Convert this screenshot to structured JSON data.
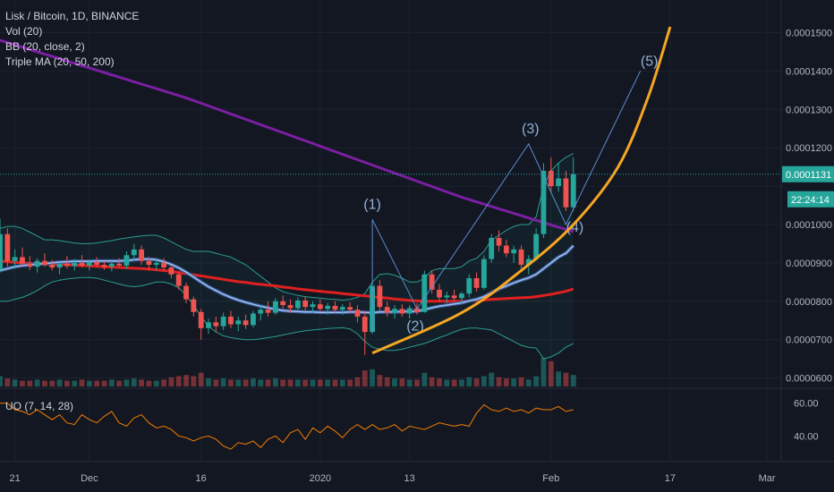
{
  "legend": {
    "symbol": "Lisk / Bitcoin, 1D, BINANCE",
    "vol": "Vol (20)",
    "bb": "BB (20, close, 2)",
    "ma": "Triple MA (20, 50, 200)",
    "uo": "UO (7, 14, 28)"
  },
  "price_badge": {
    "price": "0.0001131",
    "countdown": "22:24:14"
  },
  "wave_labels": [
    "(1)",
    "(2)",
    "(3)",
    "(4)",
    "(5)"
  ],
  "colors": {
    "background": "#131722",
    "up": "#26a69a",
    "down": "#ef5350",
    "ma200": "#7b1fa2",
    "ma50": "#e02020",
    "ma20": "#5b8ccf",
    "bb": "#2a9d8f",
    "uo": "#f57c00",
    "projection": "#f5a623",
    "wave": "#5b8ccf"
  },
  "chart_data": {
    "type": "candlestick",
    "price_axis": {
      "ticks": [
        6e-05,
        7e-05,
        8e-05,
        9e-05,
        0.0001,
        0.00011,
        0.00012,
        0.00013,
        0.00014,
        0.00015
      ],
      "labels": [
        "0.0000600",
        "0.0000700",
        "0.0000800",
        "0.0000900",
        "0.0001000",
        "0.0001100",
        "0.0001200",
        "0.0001300",
        "0.0001400",
        "0.0001500"
      ],
      "range": [
        5.78e-05,
        0.0001585
      ]
    },
    "uo_axis": {
      "ticks": [
        40,
        60
      ],
      "labels": [
        "40.00",
        "60.00"
      ],
      "range": [
        25,
        68
      ]
    },
    "time_axis": {
      "start": "2019-11-19",
      "end": "2020-03-10",
      "labels": [
        {
          "date": "2019-11-21",
          "text": "21"
        },
        {
          "date": "2019-12-01",
          "text": "Dec"
        },
        {
          "date": "2019-12-16",
          "text": "16"
        },
        {
          "date": "2020-01-01",
          "text": "2020"
        },
        {
          "date": "2020-01-13",
          "text": "13"
        },
        {
          "date": "2020-02-01",
          "text": "Feb"
        },
        {
          "date": "2020-02-17",
          "text": "17"
        },
        {
          "date": "2020-03-01",
          "text": "Mar"
        }
      ]
    },
    "candles_start": "2019-11-19",
    "candles": [
      [
        8.82e-05,
        0.0001015,
        8.75e-05,
        9.75e-05
      ],
      [
        9.75e-05,
        9.9e-05,
        8.9e-05,
        9.05e-05
      ],
      [
        9.05e-05,
        9.35e-05,
        8.85e-05,
        9.15e-05
      ],
      [
        9.15e-05,
        9.4e-05,
        8.9e-05,
        8.98e-05
      ],
      [
        8.98e-05,
        9.18e-05,
        8.82e-05,
        8.9e-05
      ],
      [
        8.9e-05,
        9.12e-05,
        8.75e-05,
        9.05e-05
      ],
      [
        9.05e-05,
        9.25e-05,
        8.9e-05,
        8.95e-05
      ],
      [
        8.95e-05,
        9.08e-05,
        8.8e-05,
        8.88e-05
      ],
      [
        8.88e-05,
        9.04e-05,
        8.7e-05,
        8.98e-05
      ],
      [
        8.98e-05,
        9.18e-05,
        8.85e-05,
        8.92e-05
      ],
      [
        8.92e-05,
        9.1e-05,
        8.8e-05,
        9e-05
      ],
      [
        9e-05,
        9.2e-05,
        8.88e-05,
        8.93e-05
      ],
      [
        8.93e-05,
        9.08e-05,
        8.8e-05,
        9.02e-05
      ],
      [
        9.02e-05,
        9.15e-05,
        8.9e-05,
        8.95e-05
      ],
      [
        8.95e-05,
        9.05e-05,
        8.82e-05,
        8.9e-05
      ],
      [
        8.9e-05,
        9.05e-05,
        8.78e-05,
        8.98e-05
      ],
      [
        8.98e-05,
        9.12e-05,
        8.88e-05,
        8.93e-05
      ],
      [
        8.93e-05,
        9.3e-05,
        8.85e-05,
        9.2e-05
      ],
      [
        9.2e-05,
        9.5e-05,
        9.05e-05,
        9.35e-05
      ],
      [
        9.35e-05,
        9.45e-05,
        8.95e-05,
        9.05e-05
      ],
      [
        9.05e-05,
        9.15e-05,
        8.8e-05,
        8.95e-05
      ],
      [
        8.95e-05,
        9.08e-05,
        8.8e-05,
        9e-05
      ],
      [
        9e-05,
        9.12e-05,
        8.8e-05,
        8.88e-05
      ],
      [
        8.88e-05,
        8.95e-05,
        8.6e-05,
        8.7e-05
      ],
      [
        8.7e-05,
        8.75e-05,
        8.3e-05,
        8.4e-05
      ],
      [
        8.4e-05,
        8.48e-05,
        7.95e-05,
        8.05e-05
      ],
      [
        8.05e-05,
        8.12e-05,
        7.6e-05,
        7.72e-05
      ],
      [
        7.72e-05,
        7.8e-05,
        7e-05,
        7.3e-05
      ],
      [
        7.3e-05,
        7.55e-05,
        7.15e-05,
        7.45e-05
      ],
      [
        7.45e-05,
        7.6e-05,
        7.2e-05,
        7.35e-05
      ],
      [
        7.35e-05,
        7.7e-05,
        7.25e-05,
        7.6e-05
      ],
      [
        7.6e-05,
        7.75e-05,
        7.3e-05,
        7.4e-05
      ],
      [
        7.4e-05,
        7.6e-05,
        7.22e-05,
        7.5e-05
      ],
      [
        7.5e-05,
        7.65e-05,
        7.28e-05,
        7.38e-05
      ],
      [
        7.38e-05,
        7.75e-05,
        7.32e-05,
        7.68e-05
      ],
      [
        7.68e-05,
        7.9e-05,
        7.5e-05,
        7.78e-05
      ],
      [
        7.78e-05,
        8e-05,
        7.6e-05,
        7.7e-05
      ],
      [
        7.7e-05,
        8.08e-05,
        7.65e-05,
        8e-05
      ],
      [
        8e-05,
        8.15e-05,
        7.8e-05,
        7.9e-05
      ],
      [
        7.9e-05,
        8.05e-05,
        7.7e-05,
        7.82e-05
      ],
      [
        7.82e-05,
        8.1e-05,
        7.78e-05,
        8.02e-05
      ],
      [
        8.02e-05,
        8.12e-05,
        7.75e-05,
        7.85e-05
      ],
      [
        7.85e-05,
        8e-05,
        7.7e-05,
        7.92e-05
      ],
      [
        7.92e-05,
        8.05e-05,
        7.72e-05,
        7.8e-05
      ],
      [
        7.8e-05,
        7.95e-05,
        7.65e-05,
        7.88e-05
      ],
      [
        7.88e-05,
        8e-05,
        7.7e-05,
        7.78e-05
      ],
      [
        7.78e-05,
        7.92e-05,
        7.65e-05,
        7.85e-05
      ],
      [
        7.85e-05,
        7.98e-05,
        7.7e-05,
        7.78e-05
      ],
      [
        7.78e-05,
        7.9e-05,
        7.45e-05,
        7.6e-05
      ],
      [
        7.6e-05,
        7.75e-05,
        6.6e-05,
        7.2e-05
      ],
      [
        7.2e-05,
        8.5e-05,
        7.15e-05,
        8.4e-05
      ],
      [
        8.4e-05,
        8.55e-05,
        7.75e-05,
        7.85e-05
      ],
      [
        7.85e-05,
        8e-05,
        7.6e-05,
        7.7e-05
      ],
      [
        7.7e-05,
        7.9e-05,
        7.55e-05,
        7.8e-05
      ],
      [
        7.8e-05,
        7.92e-05,
        7.6e-05,
        7.68e-05
      ],
      [
        7.68e-05,
        7.9e-05,
        7.55e-05,
        7.82e-05
      ],
      [
        7.82e-05,
        7.95e-05,
        7.65e-05,
        7.72e-05
      ],
      [
        7.72e-05,
        8.8e-05,
        7.7e-05,
        8.7e-05
      ],
      [
        8.7e-05,
        8.8e-05,
        8.2e-05,
        8.3e-05
      ],
      [
        8.3e-05,
        8.45e-05,
        8e-05,
        8.1e-05
      ],
      [
        8.1e-05,
        8.25e-05,
        7.95e-05,
        8.15e-05
      ],
      [
        8.15e-05,
        8.3e-05,
        8e-05,
        8.08e-05
      ],
      [
        8.08e-05,
        8.25e-05,
        7.95e-05,
        8.2e-05
      ],
      [
        8.2e-05,
        8.7e-05,
        8.1e-05,
        8.6e-05
      ],
      [
        8.6e-05,
        8.75e-05,
        8.25e-05,
        8.35e-05
      ],
      [
        8.35e-05,
        9.2e-05,
        8.3e-05,
        9.1e-05
      ],
      [
        9.1e-05,
        9.75e-05,
        9e-05,
        9.65e-05
      ],
      [
        9.65e-05,
        9.85e-05,
        9.3e-05,
        9.45e-05
      ],
      [
        9.45e-05,
        9.6e-05,
        9.15e-05,
        9.25e-05
      ],
      [
        9.25e-05,
        9.45e-05,
        9e-05,
        9.35e-05
      ],
      [
        9.35e-05,
        9.45e-05,
        8.85e-05,
        8.95e-05
      ],
      [
        8.95e-05,
        9.2e-05,
        8.7e-05,
        9.1e-05
      ],
      [
        9.1e-05,
        9.9e-05,
        9.05e-05,
        9.75e-05
      ],
      [
        9.75e-05,
        0.000116,
        9.65e-05,
        0.000114
      ],
      [
        0.000114,
        0.0001175,
        0.0001085,
        0.00011
      ],
      [
        0.00011,
        0.000116,
        0.0001085,
        0.000112
      ],
      [
        0.000112,
        0.000114,
        0.0001035,
        0.0001045
      ],
      [
        0.0001045,
        0.0001175,
        0.0001035,
        0.0001131
      ]
    ],
    "volume": [
      9,
      7,
      6,
      5,
      5,
      6,
      5,
      5,
      6,
      5,
      5,
      6,
      5,
      5,
      5,
      6,
      5,
      6,
      7,
      6,
      5,
      5,
      6,
      8,
      9,
      10,
      9,
      12,
      7,
      6,
      7,
      6,
      6,
      6,
      7,
      6,
      6,
      7,
      6,
      6,
      6,
      6,
      6,
      6,
      6,
      6,
      6,
      6,
      8,
      14,
      15,
      10,
      8,
      7,
      7,
      6,
      6,
      12,
      8,
      7,
      6,
      6,
      6,
      8,
      7,
      9,
      12,
      8,
      7,
      7,
      8,
      6,
      9,
      25,
      22,
      13,
      12,
      10
    ],
    "bollinger": {
      "upper": [
        9.9e-05,
        9.95e-05,
        9.95e-05,
        9.9e-05,
        9.8e-05,
        9.7e-05,
        9.6e-05,
        9.6e-05,
        9.58e-05,
        9.55e-05,
        9.52e-05,
        9.5e-05,
        9.5e-05,
        9.52e-05,
        9.55e-05,
        9.58e-05,
        9.62e-05,
        9.65e-05,
        9.68e-05,
        9.7e-05,
        9.72e-05,
        9.72e-05,
        9.65e-05,
        9.55e-05,
        9.45e-05,
        9.35e-05,
        9.3e-05,
        9.3e-05,
        9.3e-05,
        9.25e-05,
        9.2e-05,
        9.15e-05,
        9.05e-05,
        8.95e-05,
        8.8e-05,
        8.65e-05,
        8.5e-05,
        8.35e-05,
        8.25e-05,
        8.2e-05,
        8.15e-05,
        8.12e-05,
        8.1e-05,
        8.08e-05,
        8.06e-05,
        8.05e-05,
        8.03e-05,
        8.05e-05,
        8.1e-05,
        8.2e-05,
        8.5e-05,
        8.7e-05,
        8.72e-05,
        8.68e-05,
        8.6e-05,
        8.5e-05,
        8.5e-05,
        8.6e-05,
        8.8e-05,
        8.85e-05,
        8.85e-05,
        8.85e-05,
        8.9e-05,
        9.05e-05,
        9.12e-05,
        9.3e-05,
        9.6e-05,
        9.72e-05,
        9.85e-05,
        9.95e-05,
        0.0001,
        0.0001,
        0.000102,
        0.00011,
        0.000114,
        0.000116,
        0.0001175,
        0.0001185
      ],
      "lower": [
        8e-05,
        8e-05,
        8.05e-05,
        8.1e-05,
        8.18e-05,
        8.28e-05,
        8.4e-05,
        8.5e-05,
        8.55e-05,
        8.58e-05,
        8.6e-05,
        8.62e-05,
        8.62e-05,
        8.6e-05,
        8.55e-05,
        8.5e-05,
        8.45e-05,
        8.4e-05,
        8.38e-05,
        8.4e-05,
        8.45e-05,
        8.5e-05,
        8.5e-05,
        8.45e-05,
        8.35e-05,
        8.15e-05,
        7.9e-05,
        7.6e-05,
        7.35e-05,
        7.2e-05,
        7.1e-05,
        7.05e-05,
        7.02e-05,
        7e-05,
        7e-05,
        7.02e-05,
        7.05e-05,
        7.08e-05,
        7.12e-05,
        7.16e-05,
        7.2e-05,
        7.23e-05,
        7.25e-05,
        7.27e-05,
        7.29e-05,
        7.3e-05,
        7.31e-05,
        7.28e-05,
        7.15e-05,
        6.95e-05,
        6.8e-05,
        6.75e-05,
        6.72e-05,
        6.72e-05,
        6.75e-05,
        6.8e-05,
        6.85e-05,
        6.9e-05,
        6.97e-05,
        7.05e-05,
        7.12e-05,
        7.2e-05,
        7.27e-05,
        7.3e-05,
        7.3e-05,
        7.28e-05,
        7.25e-05,
        7.15e-05,
        7.05e-05,
        6.95e-05,
        6.85e-05,
        6.8e-05,
        6.78e-05,
        6.5e-05,
        6.55e-05,
        6.65e-05,
        6.8e-05,
        6.9e-05
      ]
    },
    "ma20": [
      8.8e-05,
      8.85e-05,
      8.9e-05,
      8.93e-05,
      8.95e-05,
      8.97e-05,
      8.98e-05,
      9e-05,
      9.02e-05,
      9.03e-05,
      9.04e-05,
      9.04e-05,
      9.04e-05,
      9.05e-05,
      9.05e-05,
      9.05e-05,
      9.05e-05,
      9.06e-05,
      9.08e-05,
      9.1e-05,
      9.1e-05,
      9.08e-05,
      9.03e-05,
      8.96e-05,
      8.87e-05,
      8.76e-05,
      8.63e-05,
      8.5e-05,
      8.38e-05,
      8.28e-05,
      8.18e-05,
      8.1e-05,
      8.03e-05,
      7.97e-05,
      7.92e-05,
      7.87e-05,
      7.83e-05,
      7.79e-05,
      7.76e-05,
      7.74e-05,
      7.73e-05,
      7.72e-05,
      7.72e-05,
      7.71e-05,
      7.71e-05,
      7.71e-05,
      7.71e-05,
      7.72e-05,
      7.72e-05,
      7.71e-05,
      7.7e-05,
      7.72e-05,
      7.72e-05,
      7.72e-05,
      7.73e-05,
      7.73e-05,
      7.74e-05,
      7.78e-05,
      7.83e-05,
      7.87e-05,
      7.9e-05,
      7.93e-05,
      7.96e-05,
      8.01e-05,
      8.05e-05,
      8.12e-05,
      8.22e-05,
      8.32e-05,
      8.4e-05,
      8.48e-05,
      8.55e-05,
      8.61e-05,
      8.7e-05,
      8.85e-05,
      9e-05,
      9.15e-05,
      9.25e-05,
      9.45e-05
    ],
    "ma50": [
      9.05e-05,
      9.03e-05,
      9.01e-05,
      9e-05,
      8.99e-05,
      8.98e-05,
      8.97e-05,
      8.96e-05,
      8.96e-05,
      8.95e-05,
      8.94e-05,
      8.93e-05,
      8.92e-05,
      8.91e-05,
      8.9e-05,
      8.89e-05,
      8.88e-05,
      8.87e-05,
      8.86e-05,
      8.85e-05,
      8.84e-05,
      8.82e-05,
      8.8e-05,
      8.78e-05,
      8.75e-05,
      8.72e-05,
      8.69e-05,
      8.66e-05,
      8.63e-05,
      8.6e-05,
      8.57e-05,
      8.54e-05,
      8.51e-05,
      8.49e-05,
      8.46e-05,
      8.44e-05,
      8.42e-05,
      8.4e-05,
      8.37e-05,
      8.35e-05,
      8.32e-05,
      8.3e-05,
      8.28e-05,
      8.26e-05,
      8.24e-05,
      8.22e-05,
      8.2e-05,
      8.18e-05,
      8.16e-05,
      8.14e-05,
      8.12e-05,
      8.1e-05,
      8.08e-05,
      8.06e-05,
      8.04e-05,
      8.02e-05,
      8.01e-05,
      8e-05,
      8e-05,
      8e-05,
      8e-05,
      8e-05,
      8e-05,
      8.01e-05,
      8.02e-05,
      8.03e-05,
      8.05e-05,
      8.06e-05,
      8.07e-05,
      8.08e-05,
      8.09e-05,
      8.1e-05,
      8.12e-05,
      8.15e-05,
      8.18e-05,
      8.22e-05,
      8.26e-05,
      8.32e-05
    ],
    "ma200": [
      0.000148,
      0.0001474,
      0.0001468,
      0.0001462,
      0.0001456,
      0.000145,
      0.0001444,
      0.0001438,
      0.0001432,
      0.0001426,
      0.000142,
      0.0001414,
      0.0001408,
      0.0001402,
      0.0001396,
      0.000139,
      0.0001384,
      0.0001378,
      0.0001372,
      0.0001366,
      0.000136,
      0.0001354,
      0.0001348,
      0.0001342,
      0.0001336,
      0.000133,
      0.0001323,
      0.0001316,
      0.0001309,
      0.0001302,
      0.0001295,
      0.0001288,
      0.0001281,
      0.0001274,
      0.0001267,
      0.000126,
      0.0001253,
      0.0001246,
      0.0001239,
      0.0001232,
      0.0001225,
      0.0001218,
      0.0001211,
      0.0001204,
      0.0001197,
      0.000119,
      0.0001183,
      0.0001176,
      0.0001169,
      0.0001162,
      0.0001155,
      0.0001148,
      0.0001141,
      0.0001134,
      0.0001127,
      0.000112,
      0.0001113,
      0.0001106,
      0.0001099,
      0.0001092,
      0.0001085,
      0.0001078,
      0.0001071,
      0.0001065,
      0.0001059,
      0.0001053,
      0.0001047,
      0.0001041,
      0.0001035,
      0.0001029,
      0.0001023,
      0.0001017,
      0.0001011,
      0.0001005,
      9.99e-05,
      9.93e-05,
      9.87e-05,
      9.81e-05
    ],
    "uo": [
      60,
      60,
      56,
      55,
      53,
      56,
      53,
      50,
      53,
      48,
      47,
      53,
      50,
      48,
      52,
      55,
      48,
      46,
      51,
      53,
      48,
      45,
      46,
      44,
      40,
      39,
      37,
      39,
      40,
      38,
      34,
      32,
      36,
      35,
      37,
      33,
      38,
      40,
      36,
      42,
      44,
      38,
      45,
      42,
      46,
      43,
      39,
      44,
      47,
      44,
      47,
      44,
      45,
      47,
      43,
      46,
      45,
      44,
      46,
      48,
      47,
      46,
      47,
      46,
      54,
      59,
      56,
      55,
      57,
      55,
      56,
      54,
      57,
      56,
      56,
      58,
      55,
      56
    ],
    "wave_points": [
      {
        "label": "(1)",
        "date": "2020-01-08",
        "price": 0.0001013
      },
      {
        "label": "(2)",
        "date": "2020-01-14",
        "price": 7.8e-05
      },
      {
        "label": "(3)",
        "date": "2020-01-29",
        "price": 0.000121
      },
      {
        "label": "(4)",
        "date": "2020-02-03",
        "price": 0.0001
      },
      {
        "label": "(5)",
        "date": "2020-02-13",
        "price": 0.00014
      }
    ],
    "projection_curve": [
      {
        "date": "2020-01-08",
        "price": 6.65e-05
      },
      {
        "date": "2020-01-20",
        "price": 7.7e-05
      },
      {
        "date": "2020-01-28",
        "price": 8.8e-05
      },
      {
        "date": "2020-02-04",
        "price": 0.0001
      },
      {
        "date": "2020-02-10",
        "price": 0.000115
      },
      {
        "date": "2020-02-14",
        "price": 0.000133
      },
      {
        "date": "2020-02-17",
        "price": 0.0001515
      }
    ],
    "current_price": 0.0001131,
    "countdown": "22:24:14"
  }
}
